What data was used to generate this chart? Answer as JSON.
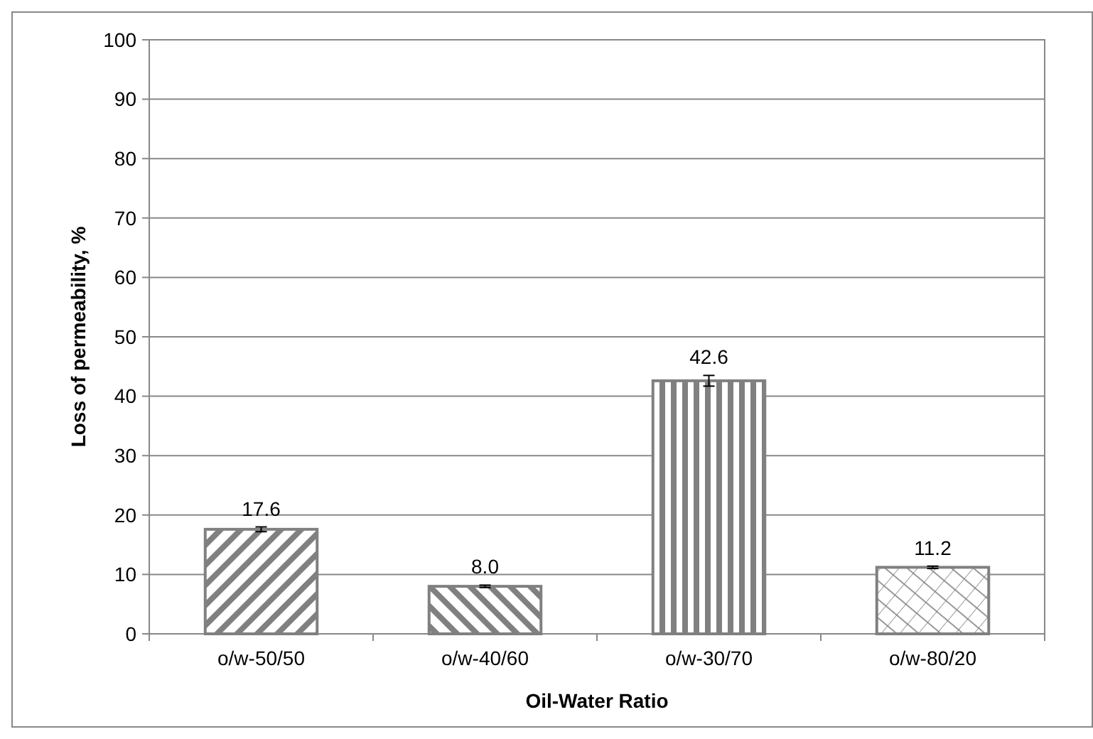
{
  "chart_data": {
    "type": "bar",
    "xlabel": "Oil-Water Ratio",
    "ylabel": "Loss of permeability, %",
    "categories": [
      "o/w-50/50",
      "o/w-40/60",
      "o/w-30/70",
      "o/w-80/20"
    ],
    "values": [
      17.6,
      8.0,
      42.6,
      11.2
    ],
    "value_labels": [
      "17.6",
      "8.0",
      "42.6",
      "11.2"
    ],
    "errors": [
      0.4,
      0.2,
      0.9,
      0.2
    ],
    "color": "#808080",
    "ylim": [
      0,
      100
    ],
    "yticks": [
      0,
      10,
      20,
      30,
      40,
      50,
      60,
      70,
      80,
      90,
      100
    ],
    "grid": "y"
  }
}
